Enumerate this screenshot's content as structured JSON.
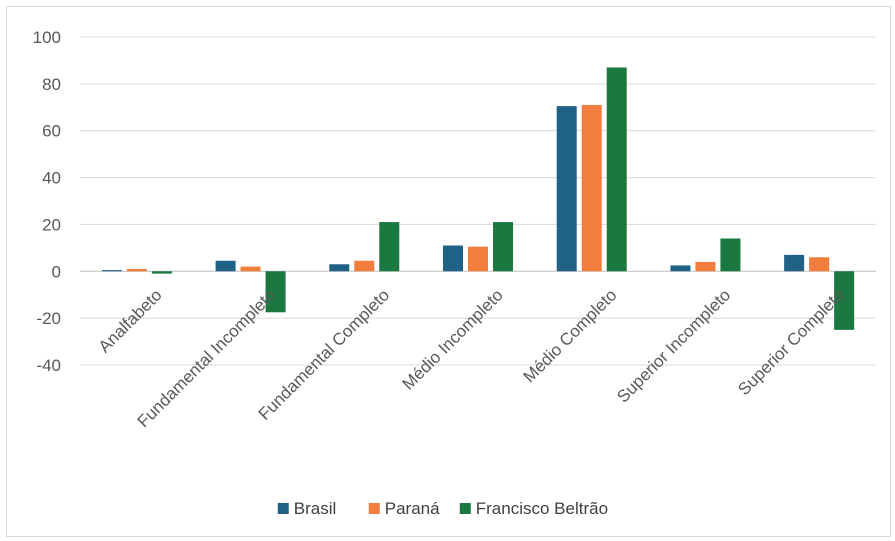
{
  "chart_data": {
    "type": "bar",
    "categories": [
      "Analfabeto",
      "Fundamental Incompleto",
      "Fundamental Completo",
      "Médio Incompleto",
      "Médio Completo",
      "Superior Incompleto",
      "Superior Completo"
    ],
    "series": [
      {
        "name": "Brasil",
        "color": "#1f6285",
        "values": [
          0.5,
          4.5,
          3,
          11,
          70.5,
          2.5,
          7
        ]
      },
      {
        "name": "Paraná",
        "color": "#f17e3c",
        "values": [
          1,
          2,
          4.5,
          10.5,
          71,
          4,
          6
        ]
      },
      {
        "name": "Francisco Beltrão",
        "color": "#1a7840",
        "values": [
          -1,
          -17.5,
          21,
          21,
          87,
          14,
          -25
        ]
      }
    ],
    "ylim": [
      -40,
      100
    ],
    "yticks": [
      100,
      80,
      60,
      40,
      20,
      0,
      -20,
      -40
    ],
    "grid": true,
    "legend_position": "bottom"
  }
}
